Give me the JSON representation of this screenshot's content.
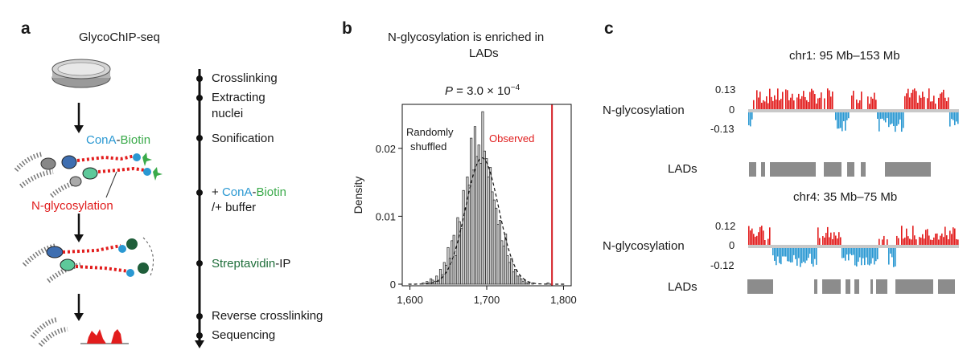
{
  "panels": {
    "a": {
      "letter": "a",
      "title": "GlycoChIP-seq",
      "steps": [
        "Crosslinking",
        "Extracting",
        "nuclei",
        "Sonification",
        "/+ buffer",
        "Reverse crosslinking",
        "Sequencing"
      ],
      "step_plus": "+ ",
      "conA": "ConA",
      "dash": "-",
      "biotin": "Biotin",
      "streptavidin": "Streptavidin",
      "ip": "-IP",
      "nglyco_label": "N-glycosylation"
    },
    "b": {
      "letter": "b",
      "title_line1": "N-glycosylation is enriched in",
      "title_line2": "LADs",
      "p_prefix": "P",
      "p_value": " = 3.0 × 10",
      "p_exp": "−4",
      "random_line1": "Randomly",
      "random_line2": "shuffled",
      "observed": "Observed"
    },
    "c": {
      "letter": "c",
      "track1_title": "chr1: 95 Mb–153 Mb",
      "track2_title": "chr4: 35 Mb–75 Mb",
      "nglyco": "N-glycosylation",
      "lads": "LADs",
      "t1_ticks": [
        "0.13",
        "0",
        "-0.13"
      ],
      "t2_ticks": [
        "0.12",
        "0",
        "-0.12"
      ]
    }
  },
  "colors": {
    "positive": "#e21d1d",
    "negative": "#2a98d2",
    "lad": "#8c8c8c",
    "observed": "#d41f26"
  },
  "chart_data": {
    "type": "bar",
    "title": "N-glycosylation is enriched in LADs",
    "xlabel": "",
    "ylabel": "Density",
    "xlim": [
      1590,
      1810
    ],
    "ylim": [
      0,
      0.026
    ],
    "xticks": [
      "1,600",
      "1,700",
      "1,800"
    ],
    "xtick_values": [
      1600,
      1700,
      1800
    ],
    "yticks": [
      "0",
      "0.01",
      "0.02"
    ],
    "ytick_values": [
      0,
      0.01,
      0.02
    ],
    "observed_x": 1785,
    "bin_start": 1616,
    "bin_width": 2.5,
    "values": [
      0.0002,
      0,
      0.0004,
      0.0002,
      0.0008,
      0.0006,
      0.0004,
      0.0012,
      0.0004,
      0.0022,
      0.0014,
      0.0032,
      0.0028,
      0.0054,
      0.0038,
      0.0064,
      0.0072,
      0.0042,
      0.0098,
      0.0092,
      0.0082,
      0.0138,
      0.0112,
      0.0158,
      0.0146,
      0.0215,
      0.0168,
      0.0232,
      0.0188,
      0.0205,
      0.0178,
      0.0254,
      0.0196,
      0.0185,
      0.0158,
      0.0172,
      0.0136,
      0.0124,
      0.0112,
      0.0088,
      0.0094,
      0.0064,
      0.0056,
      0.0074,
      0.0042,
      0.0032,
      0.0038,
      0.0018,
      0.0022,
      0.0012,
      0.0012,
      0.0008,
      0.0004,
      0.0006,
      0.0002,
      0.0002,
      0,
      0.0002,
      0,
      0,
      0,
      0,
      0,
      0,
      0,
      0.0002
    ],
    "density_curve": {
      "mean": 1694,
      "sd": 21.5,
      "peak": 0.0186
    }
  }
}
